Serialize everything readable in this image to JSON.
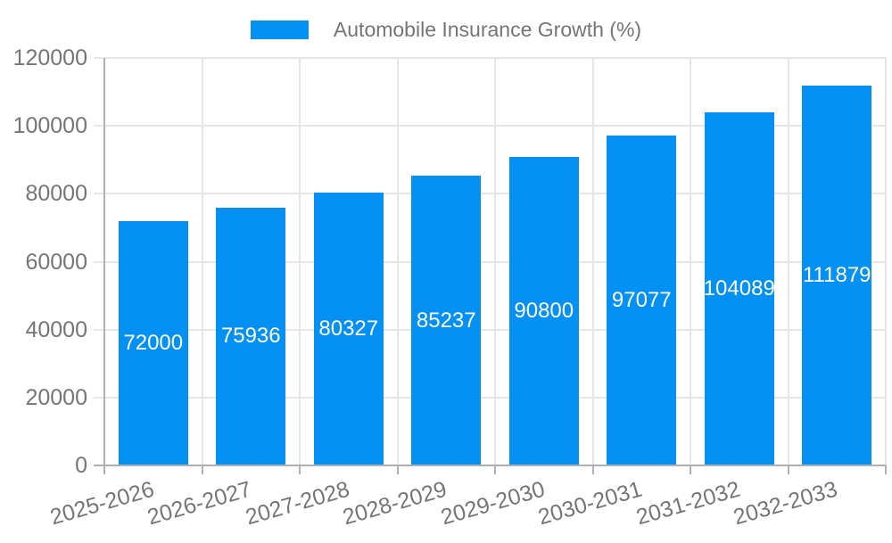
{
  "legend": {
    "label": "Automobile Insurance Growth (%)",
    "swatch_color": "#0590F4"
  },
  "colors": {
    "bar": "#0590F4",
    "axis_text": "#757575",
    "value_text": "#ffffff",
    "gridline": "#e6e6e6",
    "axis_line": "#b0b0b0",
    "background": "#ffffff"
  },
  "chart_data": {
    "type": "bar",
    "title": "Automobile Insurance Growth (%)",
    "categories": [
      "2025-2026",
      "2026-2027",
      "2027-2028",
      "2028-2029",
      "2029-2030",
      "2030-2031",
      "2031-2032",
      "2032-2033"
    ],
    "values": [
      72000,
      75936,
      80327,
      85237,
      90800,
      97077,
      104089,
      111879
    ],
    "bar_labels": [
      "72000",
      "75936",
      "80327",
      "85237",
      "90800",
      "97077",
      "104089",
      "111879"
    ],
    "xlabel": "",
    "ylabel": "",
    "ylim": [
      0,
      120000
    ],
    "yticks": [
      0,
      20000,
      40000,
      60000,
      80000,
      100000,
      120000
    ],
    "ytick_labels": [
      "0",
      "20000",
      "40000",
      "60000",
      "80000",
      "100000",
      "120000"
    ],
    "grid": true,
    "legend_position": "top",
    "legend_entries": [
      "Automobile Insurance Growth (%)"
    ]
  }
}
